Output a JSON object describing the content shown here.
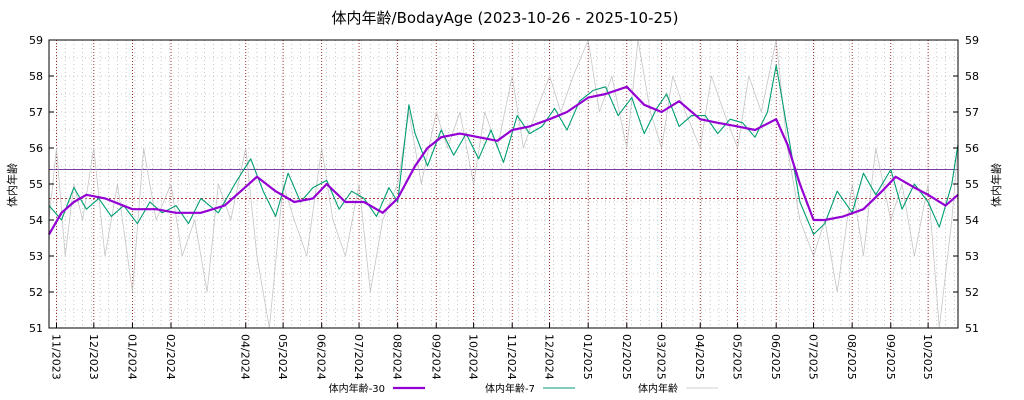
{
  "chart_data": {
    "type": "line",
    "title": "体内年齢/BodayAge (2023-10-26 - 2025-10-25)",
    "ylabel_left": "体内年齢",
    "ylabel_right": "体内年齢",
    "ylim": [
      51,
      59
    ],
    "y_ticks": [
      51,
      52,
      53,
      54,
      55,
      56,
      57,
      58,
      59
    ],
    "x_range": [
      "2023-10-26",
      "2025-10-25"
    ],
    "x_tick_labels": [
      "11/2023",
      "12/2023",
      "01/2024",
      "02/2024",
      "04/2024",
      "05/2024",
      "06/2024",
      "07/2024",
      "08/2024",
      "09/2024",
      "10/2024",
      "11/2024",
      "12/2024",
      "01/2025",
      "02/2025",
      "03/2025",
      "04/2025",
      "05/2025",
      "06/2025",
      "07/2025",
      "08/2025",
      "09/2025",
      "10/2025"
    ],
    "x_tick_dates": [
      "2023-11-01",
      "2023-12-01",
      "2024-01-01",
      "2024-02-01",
      "2024-04-01",
      "2024-05-01",
      "2024-06-01",
      "2024-07-01",
      "2024-08-01",
      "2024-09-01",
      "2024-10-01",
      "2024-11-01",
      "2024-12-01",
      "2025-01-01",
      "2025-02-01",
      "2025-03-01",
      "2025-04-01",
      "2025-05-01",
      "2025-06-01",
      "2025-07-01",
      "2025-08-01",
      "2025-09-01",
      "2025-10-01"
    ],
    "reference_lines": [
      55.4,
      54.6
    ],
    "grid": true,
    "legend_position": "bottom",
    "colors": {
      "ma30": "#9400d3",
      "ma7": "#009e73",
      "raw": "#c0c0c0",
      "ref_upper": "#4b0082",
      "ref_lower": "#8b0000",
      "grid": "#a0a0a0"
    },
    "series": [
      {
        "name": "体内年齢-30",
        "key": "ma30",
        "x": [
          "2023-10-26",
          "2023-11-05",
          "2023-11-15",
          "2023-11-25",
          "2023-12-10",
          "2024-01-01",
          "2024-01-20",
          "2024-02-05",
          "2024-02-25",
          "2024-03-15",
          "2024-03-28",
          "2024-04-10",
          "2024-04-25",
          "2024-05-10",
          "2024-05-25",
          "2024-06-05",
          "2024-06-20",
          "2024-07-05",
          "2024-07-20",
          "2024-08-01",
          "2024-08-15",
          "2024-08-25",
          "2024-09-05",
          "2024-09-20",
          "2024-10-05",
          "2024-10-20",
          "2024-11-01",
          "2024-11-15",
          "2024-12-01",
          "2024-12-15",
          "2025-01-01",
          "2025-01-15",
          "2025-02-01",
          "2025-02-15",
          "2025-03-01",
          "2025-03-15",
          "2025-04-01",
          "2025-04-15",
          "2025-05-01",
          "2025-05-15",
          "2025-06-01",
          "2025-06-10",
          "2025-06-20",
          "2025-07-01",
          "2025-07-10",
          "2025-07-25",
          "2025-08-10",
          "2025-08-25",
          "2025-09-05",
          "2025-09-20",
          "2025-10-01",
          "2025-10-15",
          "2025-10-25"
        ],
        "values": [
          53.6,
          54.2,
          54.5,
          54.7,
          54.6,
          54.3,
          54.3,
          54.2,
          54.2,
          54.4,
          54.8,
          55.2,
          54.8,
          54.5,
          54.6,
          55.0,
          54.5,
          54.5,
          54.2,
          54.6,
          55.5,
          56.0,
          56.3,
          56.4,
          56.3,
          56.2,
          56.5,
          56.6,
          56.8,
          57.0,
          57.4,
          57.5,
          57.7,
          57.2,
          57.0,
          57.3,
          56.8,
          56.7,
          56.6,
          56.5,
          56.8,
          56.1,
          55.0,
          54.0,
          54.0,
          54.1,
          54.3,
          54.8,
          55.2,
          54.9,
          54.7,
          54.4,
          54.7
        ]
      },
      {
        "name": "体内年齢-7",
        "key": "ma7",
        "x": [
          "2023-10-26",
          "2023-11-05",
          "2023-11-15",
          "2023-11-25",
          "2023-12-05",
          "2023-12-15",
          "2023-12-25",
          "2024-01-05",
          "2024-01-15",
          "2024-01-25",
          "2024-02-05",
          "2024-02-15",
          "2024-02-25",
          "2024-03-10",
          "2024-03-25",
          "2024-04-05",
          "2024-04-15",
          "2024-04-25",
          "2024-05-05",
          "2024-05-15",
          "2024-05-25",
          "2024-06-05",
          "2024-06-15",
          "2024-06-25",
          "2024-07-05",
          "2024-07-15",
          "2024-07-25",
          "2024-08-01",
          "2024-08-10",
          "2024-08-15",
          "2024-08-25",
          "2024-09-05",
          "2024-09-15",
          "2024-09-25",
          "2024-10-05",
          "2024-10-15",
          "2024-10-25",
          "2024-11-05",
          "2024-11-15",
          "2024-11-25",
          "2024-12-05",
          "2024-12-15",
          "2024-12-25",
          "2025-01-05",
          "2025-01-15",
          "2025-01-25",
          "2025-02-05",
          "2025-02-15",
          "2025-02-25",
          "2025-03-05",
          "2025-03-15",
          "2025-03-25",
          "2025-04-05",
          "2025-04-15",
          "2025-04-25",
          "2025-05-05",
          "2025-05-15",
          "2025-05-25",
          "2025-06-01",
          "2025-06-10",
          "2025-06-20",
          "2025-07-01",
          "2025-07-10",
          "2025-07-20",
          "2025-08-01",
          "2025-08-10",
          "2025-08-20",
          "2025-09-01",
          "2025-09-10",
          "2025-09-20",
          "2025-10-01",
          "2025-10-10",
          "2025-10-20",
          "2025-10-25"
        ],
        "values": [
          54.4,
          54.0,
          54.9,
          54.3,
          54.6,
          54.1,
          54.4,
          53.9,
          54.5,
          54.2,
          54.4,
          53.9,
          54.6,
          54.2,
          55.1,
          55.7,
          54.8,
          54.1,
          55.3,
          54.5,
          54.9,
          55.1,
          54.3,
          54.8,
          54.6,
          54.1,
          54.9,
          54.5,
          57.2,
          56.4,
          55.5,
          56.5,
          55.8,
          56.4,
          55.7,
          56.5,
          55.6,
          56.9,
          56.4,
          56.6,
          57.1,
          56.5,
          57.3,
          57.6,
          57.7,
          56.9,
          57.4,
          56.4,
          57.1,
          57.5,
          56.6,
          56.9,
          56.9,
          56.4,
          56.8,
          56.7,
          56.3,
          57.0,
          58.3,
          56.5,
          54.5,
          53.6,
          53.9,
          54.8,
          54.2,
          55.3,
          54.7,
          55.4,
          54.3,
          55.0,
          54.5,
          53.8,
          55.0,
          56.1
        ]
      },
      {
        "name": "体内年齢",
        "key": "raw",
        "x": [
          "2023-10-26",
          "2023-11-01",
          "2023-11-08",
          "2023-11-15",
          "2023-11-22",
          "2023-12-01",
          "2023-12-10",
          "2023-12-20",
          "2024-01-01",
          "2024-01-10",
          "2024-01-20",
          "2024-02-01",
          "2024-02-10",
          "2024-02-20",
          "2024-03-01",
          "2024-03-10",
          "2024-03-20",
          "2024-04-01",
          "2024-04-10",
          "2024-04-20",
          "2024-05-01",
          "2024-05-10",
          "2024-05-20",
          "2024-06-01",
          "2024-06-10",
          "2024-06-20",
          "2024-07-01",
          "2024-07-10",
          "2024-07-20",
          "2024-08-01",
          "2024-08-10",
          "2024-08-20",
          "2024-09-01",
          "2024-09-10",
          "2024-09-20",
          "2024-10-01",
          "2024-10-10",
          "2024-10-20",
          "2024-11-01",
          "2024-11-10",
          "2024-11-20",
          "2024-12-01",
          "2024-12-10",
          "2024-12-20",
          "2025-01-01",
          "2025-01-10",
          "2025-01-20",
          "2025-02-01",
          "2025-02-10",
          "2025-02-20",
          "2025-03-01",
          "2025-03-10",
          "2025-03-20",
          "2025-04-01",
          "2025-04-10",
          "2025-04-20",
          "2025-05-01",
          "2025-05-10",
          "2025-05-20",
          "2025-06-01",
          "2025-06-10",
          "2025-06-20",
          "2025-07-01",
          "2025-07-10",
          "2025-07-20",
          "2025-08-01",
          "2025-08-10",
          "2025-08-20",
          "2025-09-01",
          "2025-09-10",
          "2025-09-20",
          "2025-10-01",
          "2025-10-10",
          "2025-10-20",
          "2025-10-25"
        ],
        "values": [
          54.0,
          56.0,
          53.0,
          55.0,
          54.0,
          56.0,
          53.0,
          55.0,
          52.0,
          56.0,
          54.0,
          55.0,
          53.0,
          54.0,
          52.0,
          55.0,
          54.0,
          56.0,
          53.0,
          51.0,
          55.0,
          54.0,
          53.0,
          56.0,
          54.0,
          53.0,
          55.0,
          52.0,
          54.0,
          55.0,
          57.0,
          55.0,
          57.0,
          56.0,
          57.0,
          55.0,
          57.0,
          56.0,
          58.0,
          56.0,
          57.0,
          58.0,
          57.0,
          58.0,
          59.0,
          57.0,
          58.0,
          56.0,
          59.0,
          57.0,
          56.0,
          58.0,
          57.0,
          56.0,
          58.0,
          57.0,
          56.0,
          58.0,
          57.0,
          59.0,
          56.0,
          54.0,
          53.0,
          54.0,
          52.0,
          55.0,
          53.0,
          56.0,
          54.0,
          55.0,
          53.0,
          55.0,
          51.0,
          54.0,
          56.0
        ]
      }
    ]
  }
}
